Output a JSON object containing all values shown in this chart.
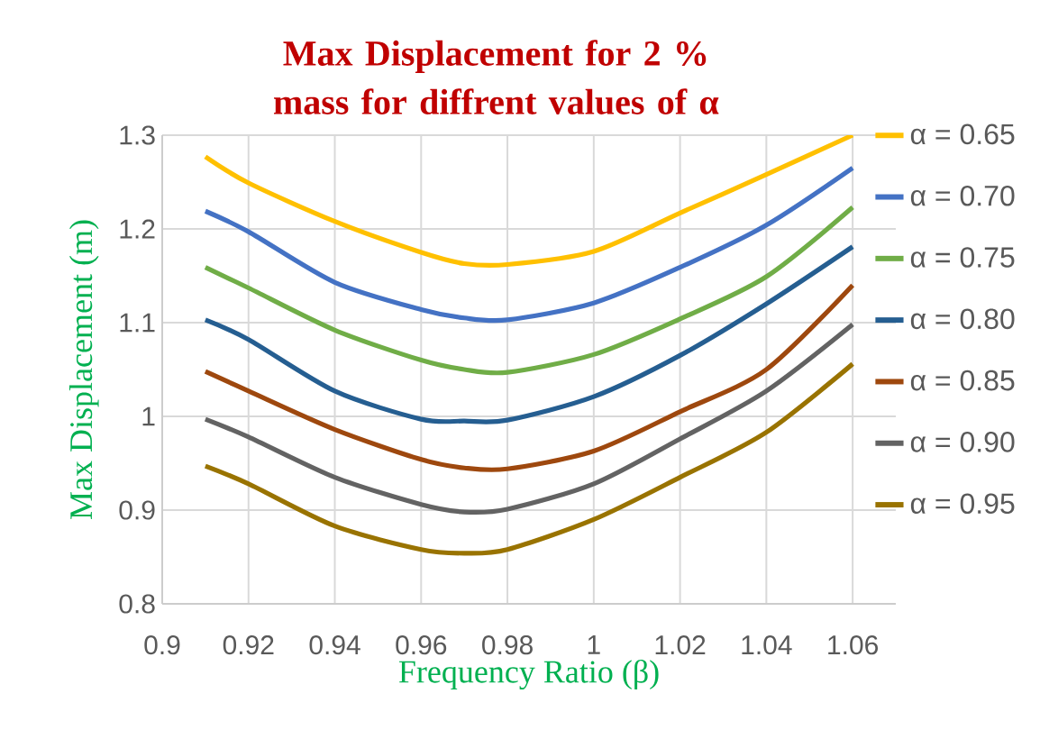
{
  "chart_data": {
    "type": "line",
    "title": "Max Displacement for 2 % mass for diffrent values of α",
    "xlabel": "Frequency Ratio (β)",
    "ylabel": "Max Displacement (m)",
    "x": [
      0.91,
      0.92,
      0.94,
      0.96,
      0.97,
      0.98,
      1.0,
      1.02,
      1.04,
      1.06
    ],
    "series": [
      {
        "name": "α = 0.65",
        "color": "#ffc000",
        "values": [
          1.277,
          1.249,
          1.208,
          1.175,
          1.163,
          1.162,
          1.176,
          1.217,
          1.258,
          1.3
        ]
      },
      {
        "name": "α = 0.70",
        "color": "#4472c4",
        "values": [
          1.219,
          1.197,
          1.143,
          1.114,
          1.105,
          1.103,
          1.121,
          1.159,
          1.204,
          1.265
        ]
      },
      {
        "name": "α = 0.75",
        "color": "#70ad47",
        "values": [
          1.159,
          1.137,
          1.092,
          1.06,
          1.05,
          1.047,
          1.066,
          1.104,
          1.149,
          1.223
        ]
      },
      {
        "name": "α = 0.80",
        "color": "#255e91",
        "values": [
          1.103,
          1.082,
          1.027,
          0.997,
          0.995,
          0.996,
          1.021,
          1.065,
          1.12,
          1.181
        ]
      },
      {
        "name": "α = 0.85",
        "color": "#9e480e",
        "values": [
          1.048,
          1.027,
          0.986,
          0.954,
          0.945,
          0.944,
          0.963,
          1.005,
          1.05,
          1.14
        ]
      },
      {
        "name": "α = 0.90",
        "color": "#636363",
        "values": [
          0.997,
          0.978,
          0.935,
          0.906,
          0.898,
          0.901,
          0.928,
          0.976,
          1.027,
          1.098
        ]
      },
      {
        "name": "α = 0.95",
        "color": "#997300",
        "values": [
          0.947,
          0.928,
          0.883,
          0.858,
          0.854,
          0.858,
          0.89,
          0.935,
          0.983,
          1.056
        ]
      }
    ],
    "xlim": [
      0.9,
      1.07
    ],
    "ylim": [
      0.8,
      1.3
    ],
    "xticks": [
      0.9,
      0.92,
      0.94,
      0.96,
      0.98,
      1,
      1.02,
      1.04,
      1.06
    ],
    "yticks": [
      0.8,
      0.9,
      1,
      1.1,
      1.2,
      1.3
    ],
    "grid": true,
    "legend": "right",
    "marker": "none",
    "line_style": "solid"
  }
}
